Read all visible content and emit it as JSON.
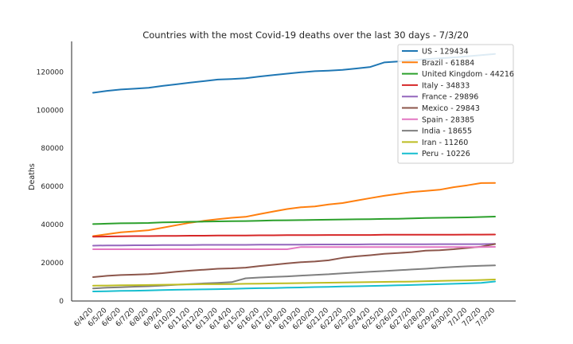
{
  "chart_data": {
    "type": "line",
    "title": "Countries with the most Covid-19 deaths over the last 30 days - 7/3/20",
    "xlabel": "",
    "ylabel": "Deaths",
    "ylim": [
      0,
      136000
    ],
    "yticks": [
      0,
      20000,
      40000,
      60000,
      80000,
      100000,
      120000
    ],
    "grid": false,
    "legend_position": "top-right",
    "categories": [
      "6/4/20",
      "6/5/20",
      "6/6/20",
      "6/7/20",
      "6/8/20",
      "6/9/20",
      "6/10/20",
      "6/11/20",
      "6/12/20",
      "6/13/20",
      "6/14/20",
      "6/15/20",
      "6/16/20",
      "6/17/20",
      "6/18/20",
      "6/19/20",
      "6/20/20",
      "6/21/20",
      "6/22/20",
      "6/23/20",
      "6/24/20",
      "6/25/20",
      "6/26/20",
      "6/27/20",
      "6/28/20",
      "6/29/20",
      "6/30/20",
      "7/1/20",
      "7/2/20",
      "7/3/20"
    ],
    "series": [
      {
        "name": "US - 129434",
        "color": "#1f77b4",
        "values": [
          109100,
          110100,
          110800,
          111200,
          111700,
          112700,
          113500,
          114400,
          115200,
          116000,
          116300,
          116700,
          117600,
          118400,
          119100,
          119800,
          120400,
          120700,
          121100,
          121800,
          122600,
          125000,
          125500,
          126100,
          126700,
          127100,
          127600,
          128200,
          128800,
          129434
        ]
      },
      {
        "name": "Brazil - 61884",
        "color": "#ff7f0e",
        "values": [
          34000,
          35000,
          36000,
          36500,
          37100,
          38400,
          39700,
          41000,
          42000,
          42900,
          43600,
          44100,
          45500,
          46900,
          48200,
          49100,
          49500,
          50600,
          51300,
          52600,
          53900,
          55100,
          56100,
          57100,
          57700,
          58300,
          59600,
          60600,
          61800,
          61884
        ]
      },
      {
        "name": "United Kingdom - 44216",
        "color": "#2ca02c",
        "values": [
          40300,
          40500,
          40700,
          40800,
          40900,
          41200,
          41300,
          41500,
          41600,
          41700,
          41800,
          41900,
          42000,
          42200,
          42300,
          42400,
          42500,
          42600,
          42700,
          42800,
          42900,
          43000,
          43100,
          43300,
          43500,
          43600,
          43700,
          43800,
          44000,
          44216
        ]
      },
      {
        "name": "Italy - 34833",
        "color": "#d62728",
        "values": [
          33700,
          33800,
          33900,
          34000,
          34000,
          34100,
          34100,
          34200,
          34200,
          34300,
          34300,
          34300,
          34400,
          34400,
          34500,
          34500,
          34500,
          34600,
          34600,
          34600,
          34600,
          34700,
          34700,
          34700,
          34700,
          34700,
          34700,
          34800,
          34800,
          34833
        ]
      },
      {
        "name": "France - 29896",
        "color": "#9467bd",
        "values": [
          29000,
          29100,
          29100,
          29200,
          29200,
          29300,
          29300,
          29300,
          29400,
          29400,
          29400,
          29400,
          29500,
          29500,
          29500,
          29500,
          29600,
          29600,
          29600,
          29600,
          29700,
          29700,
          29700,
          29700,
          29700,
          29800,
          29800,
          29800,
          29800,
          29896
        ]
      },
      {
        "name": "Mexico - 29843",
        "color": "#8c564b",
        "values": [
          12500,
          13200,
          13600,
          13800,
          14100,
          14600,
          15300,
          15900,
          16400,
          16900,
          17100,
          17500,
          18300,
          19000,
          19700,
          20300,
          20700,
          21300,
          22600,
          23400,
          24000,
          24700,
          25100,
          25600,
          26400,
          26600,
          27100,
          27800,
          28500,
          29843
        ]
      },
      {
        "name": "Spain - 28385",
        "color": "#e377c2",
        "values": [
          27100,
          27100,
          27100,
          27100,
          27100,
          27100,
          27100,
          27100,
          27100,
          27100,
          27100,
          27100,
          27100,
          27100,
          27100,
          28300,
          28300,
          28300,
          28300,
          28300,
          28300,
          28300,
          28300,
          28300,
          28300,
          28300,
          28300,
          28300,
          28300,
          28385
        ]
      },
      {
        "name": "India - 18655",
        "color": "#7f7f7f",
        "values": [
          6600,
          7000,
          7200,
          7500,
          7700,
          8100,
          8500,
          8900,
          9200,
          9500,
          9900,
          11900,
          12300,
          12600,
          12900,
          13300,
          13700,
          14000,
          14500,
          14900,
          15300,
          15700,
          16100,
          16500,
          16900,
          17400,
          17800,
          18200,
          18500,
          18655
        ]
      },
      {
        "name": "Iran - 11260",
        "color": "#bcbd22",
        "values": [
          8000,
          8100,
          8200,
          8300,
          8400,
          8500,
          8600,
          8700,
          8800,
          8800,
          8900,
          9000,
          9100,
          9200,
          9300,
          9400,
          9500,
          9600,
          9700,
          9800,
          9900,
          10000,
          10100,
          10200,
          10400,
          10500,
          10700,
          10800,
          11000,
          11260
        ]
      },
      {
        "name": "Peru - 10226",
        "color": "#17becf",
        "values": [
          5000,
          5100,
          5300,
          5400,
          5500,
          5700,
          5900,
          6000,
          6100,
          6200,
          6400,
          6600,
          6700,
          6800,
          7000,
          7100,
          7300,
          7400,
          7600,
          7700,
          7900,
          8000,
          8200,
          8400,
          8600,
          8800,
          9000,
          9200,
          9500,
          10226
        ]
      }
    ]
  }
}
